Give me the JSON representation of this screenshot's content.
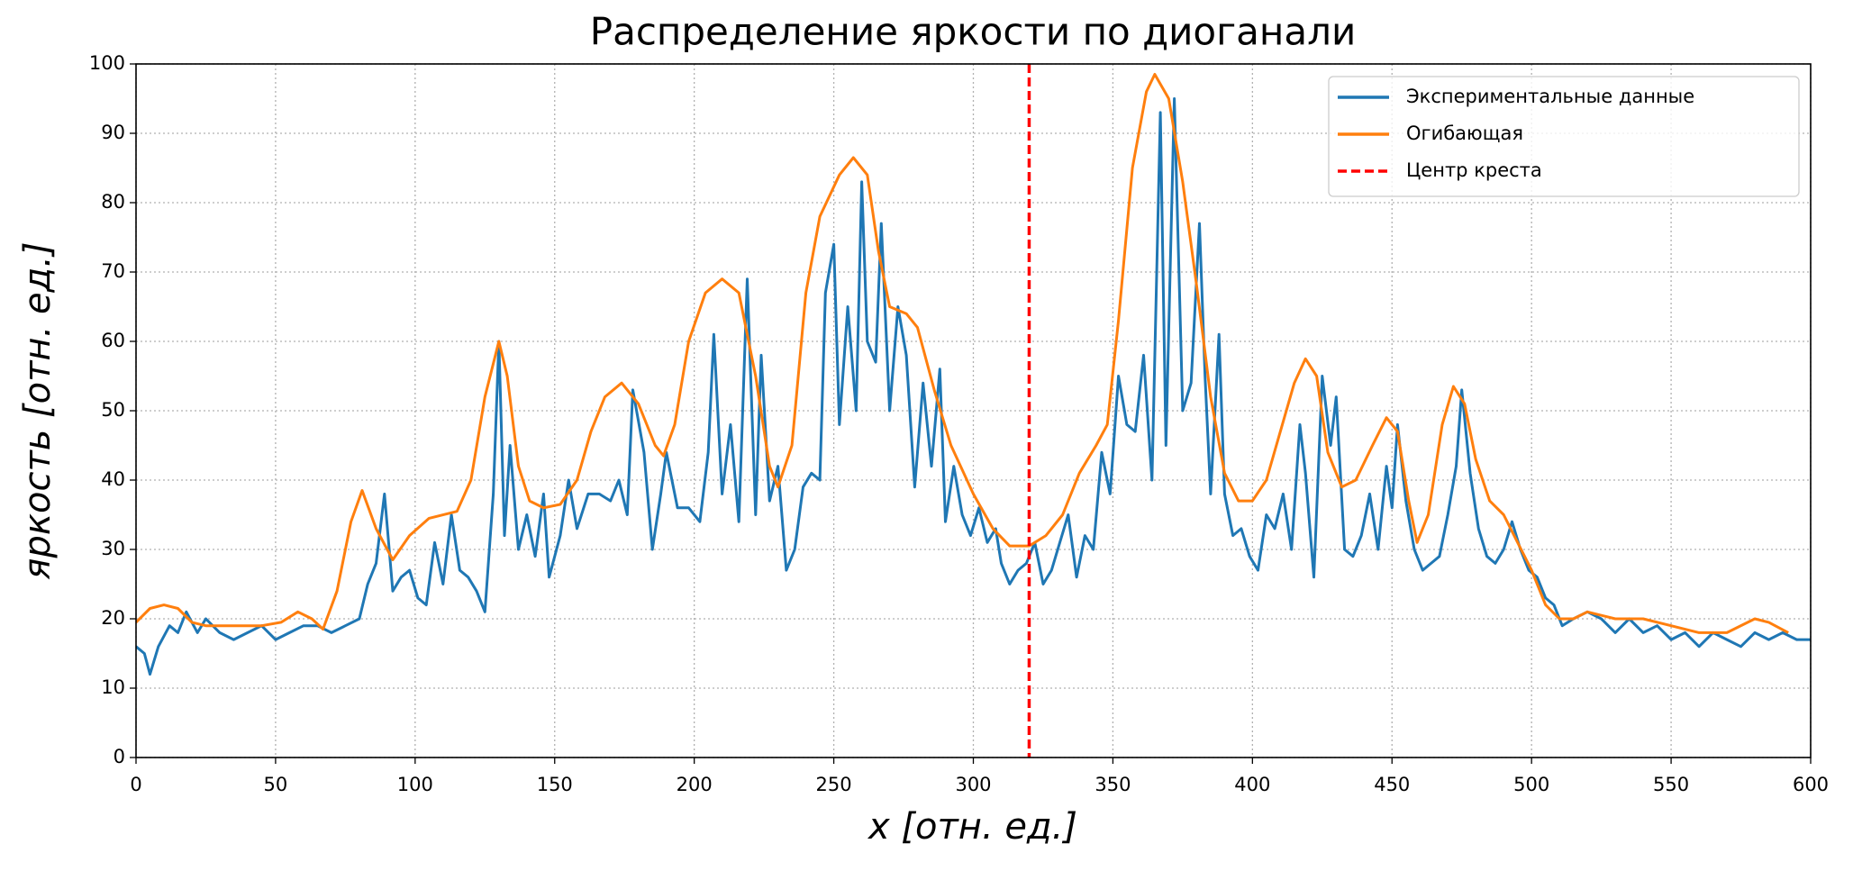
{
  "chart_data": {
    "type": "line",
    "title": "Распределение яркости по диоганали",
    "x_label": "x [отн. ед.]",
    "y_label": "яркость [отн. ед.]",
    "xlim": [
      0,
      600
    ],
    "ylim": [
      0,
      100
    ],
    "xticks": [
      0,
      50,
      100,
      150,
      200,
      250,
      300,
      350,
      400,
      450,
      500,
      550,
      600
    ],
    "yticks": [
      0,
      10,
      20,
      30,
      40,
      50,
      60,
      70,
      80,
      90,
      100
    ],
    "grid": true,
    "legend": "upper right",
    "series": [
      {
        "name": "Экспериментальные данные",
        "color": "#1f77b4",
        "x": [
          0,
          3,
          5,
          8,
          12,
          15,
          18,
          22,
          25,
          30,
          35,
          40,
          45,
          50,
          55,
          60,
          65,
          70,
          75,
          80,
          83,
          86,
          89,
          92,
          95,
          98,
          101,
          104,
          107,
          110,
          113,
          116,
          119,
          122,
          125,
          128,
          130,
          132,
          134,
          137,
          140,
          143,
          146,
          148,
          152,
          155,
          158,
          162,
          166,
          170,
          173,
          176,
          178,
          182,
          185,
          188,
          190,
          194,
          198,
          202,
          205,
          207,
          210,
          213,
          216,
          219,
          222,
          224,
          227,
          230,
          233,
          236,
          239,
          242,
          245,
          247,
          250,
          252,
          255,
          258,
          260,
          262,
          265,
          267,
          270,
          273,
          276,
          279,
          282,
          285,
          288,
          290,
          293,
          296,
          299,
          302,
          305,
          308,
          310,
          313,
          316,
          319,
          322,
          325,
          328,
          331,
          334,
          337,
          340,
          343,
          346,
          349,
          352,
          355,
          358,
          361,
          364,
          367,
          369,
          372,
          375,
          378,
          381,
          383,
          385,
          388,
          390,
          393,
          396,
          399,
          402,
          405,
          408,
          411,
          414,
          417,
          419,
          422,
          425,
          428,
          430,
          433,
          436,
          439,
          442,
          445,
          448,
          450,
          452,
          455,
          458,
          461,
          464,
          467,
          470,
          473,
          475,
          478,
          481,
          484,
          487,
          490,
          493,
          496,
          499,
          502,
          505,
          508,
          511,
          515,
          520,
          525,
          530,
          535,
          540,
          545,
          550,
          555,
          560,
          565,
          570,
          575,
          580,
          585,
          590,
          595,
          600
        ],
        "values": [
          16,
          15,
          12,
          16,
          19,
          18,
          21,
          18,
          20,
          18,
          17,
          18,
          19,
          17,
          18,
          19,
          19,
          18,
          19,
          20,
          25,
          28,
          38,
          24,
          26,
          27,
          23,
          22,
          31,
          25,
          35,
          27,
          26,
          24,
          21,
          38,
          60,
          32,
          45,
          30,
          35,
          29,
          38,
          26,
          32,
          40,
          33,
          38,
          38,
          37,
          40,
          35,
          53,
          44,
          30,
          38,
          44,
          36,
          36,
          34,
          44,
          61,
          38,
          48,
          34,
          69,
          35,
          58,
          37,
          42,
          27,
          30,
          39,
          41,
          40,
          67,
          74,
          48,
          65,
          50,
          83,
          60,
          57,
          77,
          50,
          65,
          58,
          39,
          54,
          42,
          56,
          34,
          42,
          35,
          32,
          36,
          31,
          33,
          28,
          25,
          27,
          28,
          31,
          25,
          27,
          31,
          35,
          26,
          32,
          30,
          44,
          38,
          55,
          48,
          47,
          58,
          40,
          93,
          45,
          95,
          50,
          54,
          77,
          55,
          38,
          61,
          38,
          32,
          33,
          29,
          27,
          35,
          33,
          38,
          30,
          48,
          41,
          26,
          55,
          45,
          52,
          30,
          29,
          32,
          38,
          30,
          42,
          36,
          48,
          37,
          30,
          27,
          28,
          29,
          35,
          42,
          53,
          41,
          33,
          29,
          28,
          30,
          34,
          30,
          27,
          26,
          23,
          22,
          19,
          20,
          21,
          20,
          18,
          20,
          18,
          19,
          17,
          18,
          16,
          18,
          17,
          16,
          18,
          17,
          18,
          17,
          17
        ]
      },
      {
        "name": "Огибающая",
        "color": "#ff7f0e",
        "x": [
          0,
          5,
          10,
          15,
          20,
          25,
          35,
          45,
          52,
          58,
          63,
          67,
          72,
          77,
          81,
          86,
          92,
          98,
          105,
          115,
          120,
          125,
          130,
          133,
          137,
          141,
          146,
          152,
          158,
          163,
          168,
          174,
          180,
          186,
          189,
          193,
          198,
          204,
          210,
          216,
          222,
          227,
          230,
          235,
          240,
          245,
          252,
          257,
          262,
          266,
          270,
          276,
          280,
          286,
          292,
          300,
          307,
          313,
          320,
          326,
          332,
          338,
          344,
          348,
          352,
          357,
          362,
          365,
          370,
          375,
          380,
          385,
          390,
          395,
          400,
          405,
          410,
          415,
          419,
          423,
          427,
          432,
          437,
          443,
          448,
          452,
          456,
          459,
          463,
          468,
          472,
          476,
          480,
          485,
          490,
          495,
          500,
          505,
          510,
          515,
          520,
          530,
          540,
          550,
          560,
          570,
          580,
          585,
          592
        ],
        "values": [
          19.5,
          21.5,
          22,
          21.5,
          19.5,
          19,
          19,
          19,
          19.5,
          21,
          20,
          18.5,
          24,
          34,
          38.5,
          33,
          28.5,
          32,
          34.5,
          35.5,
          40,
          52,
          60,
          55,
          42,
          37,
          36,
          36.5,
          40,
          47,
          52,
          54,
          51,
          45,
          43.5,
          48,
          60,
          67,
          69,
          67,
          55,
          42,
          39,
          45,
          67,
          78,
          84,
          86.5,
          84,
          73,
          65,
          64,
          62,
          53,
          45,
          38,
          33,
          30.5,
          30.5,
          32,
          35,
          41,
          45,
          48,
          63,
          85,
          96,
          98.5,
          95,
          83,
          68,
          52,
          41,
          37,
          37,
          40,
          47,
          54,
          57.5,
          55,
          44,
          39,
          40,
          45,
          49,
          47,
          37,
          31,
          35,
          48,
          53.5,
          51,
          43,
          37,
          35,
          31,
          27,
          22,
          20,
          20,
          21,
          20,
          20,
          19,
          18,
          18,
          20,
          19.5,
          18
        ]
      }
    ],
    "vline": {
      "name": "Центр креста",
      "color": "#ff0000",
      "x": 320
    }
  }
}
